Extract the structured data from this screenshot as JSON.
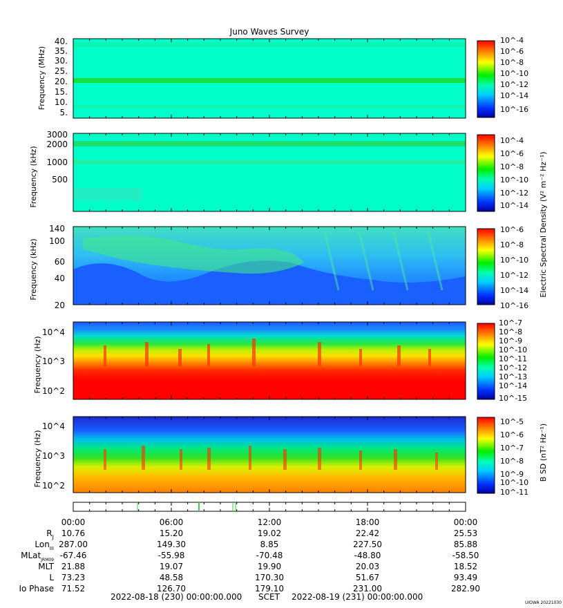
{
  "title": "Juno Waves Survey",
  "footer_left": "2022-08-18 (230) 00:00:00.000",
  "footer_mid": "SCET",
  "footer_right": "2022-08-19 (231) 00:00:00.000",
  "credit": "UIOWA 20221030",
  "colorbar_label_e": "Electric Spectral Density (V² m⁻² Hz⁻¹)",
  "colorbar_label_b": "B SD (nT² Hz⁻¹)",
  "time_ticks": [
    "00:00",
    "06:00",
    "12:00",
    "18:00",
    "00:00"
  ],
  "ephemeris": [
    {
      "label": "R",
      "sub": "J",
      "values": [
        "10.76",
        "15.20",
        "19.02",
        "22.42",
        "25.53"
      ]
    },
    {
      "label": "Lon",
      "sub": "III",
      "values": [
        "287.00",
        "149.30",
        "8.85",
        "227.50",
        "85.88"
      ]
    },
    {
      "label": "MLat",
      "sub": "JRM09",
      "values": [
        "-67.46",
        "-55.98",
        "-70.48",
        "-48.80",
        "-58.50"
      ]
    },
    {
      "label": "MLT",
      "sub": "",
      "values": [
        "21.88",
        "19.07",
        "19.90",
        "20.03",
        "18.52"
      ]
    },
    {
      "label": "L",
      "sub": "",
      "values": [
        "73.23",
        "48.58",
        "170.30",
        "51.67",
        "93.49"
      ]
    },
    {
      "label": "Io Phase",
      "sub": "",
      "values": [
        "71.52",
        "126.70",
        "179.10",
        "231.00",
        "282.90"
      ]
    }
  ],
  "chart_data": [
    {
      "type": "heatmap",
      "ylabel": "Frequency (MHz)",
      "y_ticks": [
        "40.",
        "35.",
        "30.",
        "25.",
        "20.",
        "15.",
        "10.",
        "5."
      ],
      "colorbar_ticks": [
        "10^-4",
        "10^-6",
        "10^-8",
        "10^-10",
        "10^-12",
        "10^-14",
        "10^-16"
      ],
      "colorbar_range_exp": [
        -17,
        -4
      ],
      "scale": "linear",
      "background_level_exp": -13,
      "feature": "horizontal band near 21 MHz"
    },
    {
      "type": "heatmap",
      "ylabel": "Frequency (kHz)",
      "y_ticks": [
        "3000",
        "2000",
        "1000",
        "500"
      ],
      "colorbar_ticks": [
        "10^-4",
        "10^-6",
        "10^-8",
        "10^-10",
        "10^-12",
        "10^-14"
      ],
      "colorbar_range_exp": [
        -15,
        -3
      ],
      "scale": "log",
      "background_level_exp": -12
    },
    {
      "type": "heatmap",
      "ylabel": "Frequency (kHz)",
      "y_ticks": [
        "140",
        "100",
        "60",
        "40",
        "20"
      ],
      "colorbar_ticks": [
        "10^-6",
        "10^-8",
        "10^-10",
        "10^-12",
        "10^-14",
        "10^-16"
      ],
      "colorbar_range_exp": [
        -16,
        -6
      ],
      "scale": "log"
    },
    {
      "type": "heatmap",
      "ylabel": "Frequency (Hz)",
      "y_ticks": [
        "10^4",
        "10^3",
        "10^2"
      ],
      "colorbar_ticks": [
        "10^-7",
        "10^-8",
        "10^-9",
        "10^-10",
        "10^-11",
        "10^-12",
        "10^-13",
        "10^-14",
        "10^-15"
      ],
      "colorbar_range_exp": [
        -15,
        -7
      ],
      "scale": "log"
    },
    {
      "type": "heatmap",
      "ylabel": "Frequency (Hz)",
      "y_ticks": [
        "10^4",
        "10^3",
        "10^2"
      ],
      "colorbar_ticks": [
        "10^-5",
        "10^-6",
        "10^-7",
        "10^-8",
        "10^-9",
        "10^-10",
        "10^-11"
      ],
      "colorbar_range_exp": [
        -11,
        -4.5
      ],
      "scale": "log"
    }
  ]
}
